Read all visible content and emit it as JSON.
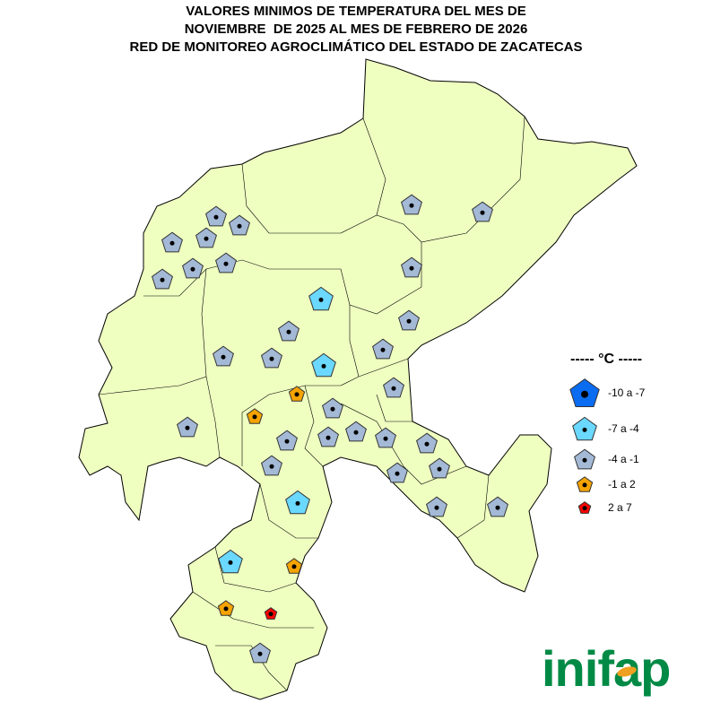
{
  "title": {
    "line1": "VALORES MINIMOS DE TEMPERATURA DEL MES DE",
    "line2": "NOVIEMBRE  DE 2025 AL MES DE FEBRERO DE 2026",
    "line3": "RED DE MONITOREO AGROCLIMÁTICO DEL ESTADO DE ZACATECAS"
  },
  "map": {
    "fill_color": "#efffc0",
    "border_color": "#000000"
  },
  "legend": {
    "title": "----- °C -----",
    "classes": [
      {
        "label": "-10 a -7",
        "color": "#0a6cf0"
      },
      {
        "label": "-7 a -4",
        "color": "#6ad8ff"
      },
      {
        "label": "-4 a -1",
        "color": "#a3b9d6"
      },
      {
        "label": "-1 a 2",
        "color": "#f5a300"
      },
      {
        "label": "2 a 7",
        "color": "#ff0000"
      }
    ]
  },
  "stations": [
    {
      "class": 1
    },
    {
      "class": 1
    },
    {
      "class": 1
    },
    {
      "class": 1
    },
    {
      "class": 3
    },
    {
      "class": 3
    },
    {
      "class": 3
    },
    {
      "class": 3
    },
    {
      "class": 4
    },
    {
      "class": 2
    },
    {
      "class": 2
    },
    {
      "class": 2
    },
    {
      "class": 2
    },
    {
      "class": 2
    },
    {
      "class": 2
    },
    {
      "class": 2
    },
    {
      "class": 2
    },
    {
      "class": 2
    },
    {
      "class": 2
    },
    {
      "class": 2
    },
    {
      "class": 2
    },
    {
      "class": 2
    },
    {
      "class": 2
    },
    {
      "class": 2
    },
    {
      "class": 2
    },
    {
      "class": 2
    },
    {
      "class": 2
    },
    {
      "class": 2
    },
    {
      "class": 2
    },
    {
      "class": 2
    },
    {
      "class": 2
    },
    {
      "class": 2
    },
    {
      "class": 2
    },
    {
      "class": 2
    },
    {
      "class": 2
    },
    {
      "class": 2
    },
    {
      "class": 2
    },
    {
      "class": 2
    }
  ],
  "logo": {
    "text": "inifap",
    "color": "#008a45"
  }
}
